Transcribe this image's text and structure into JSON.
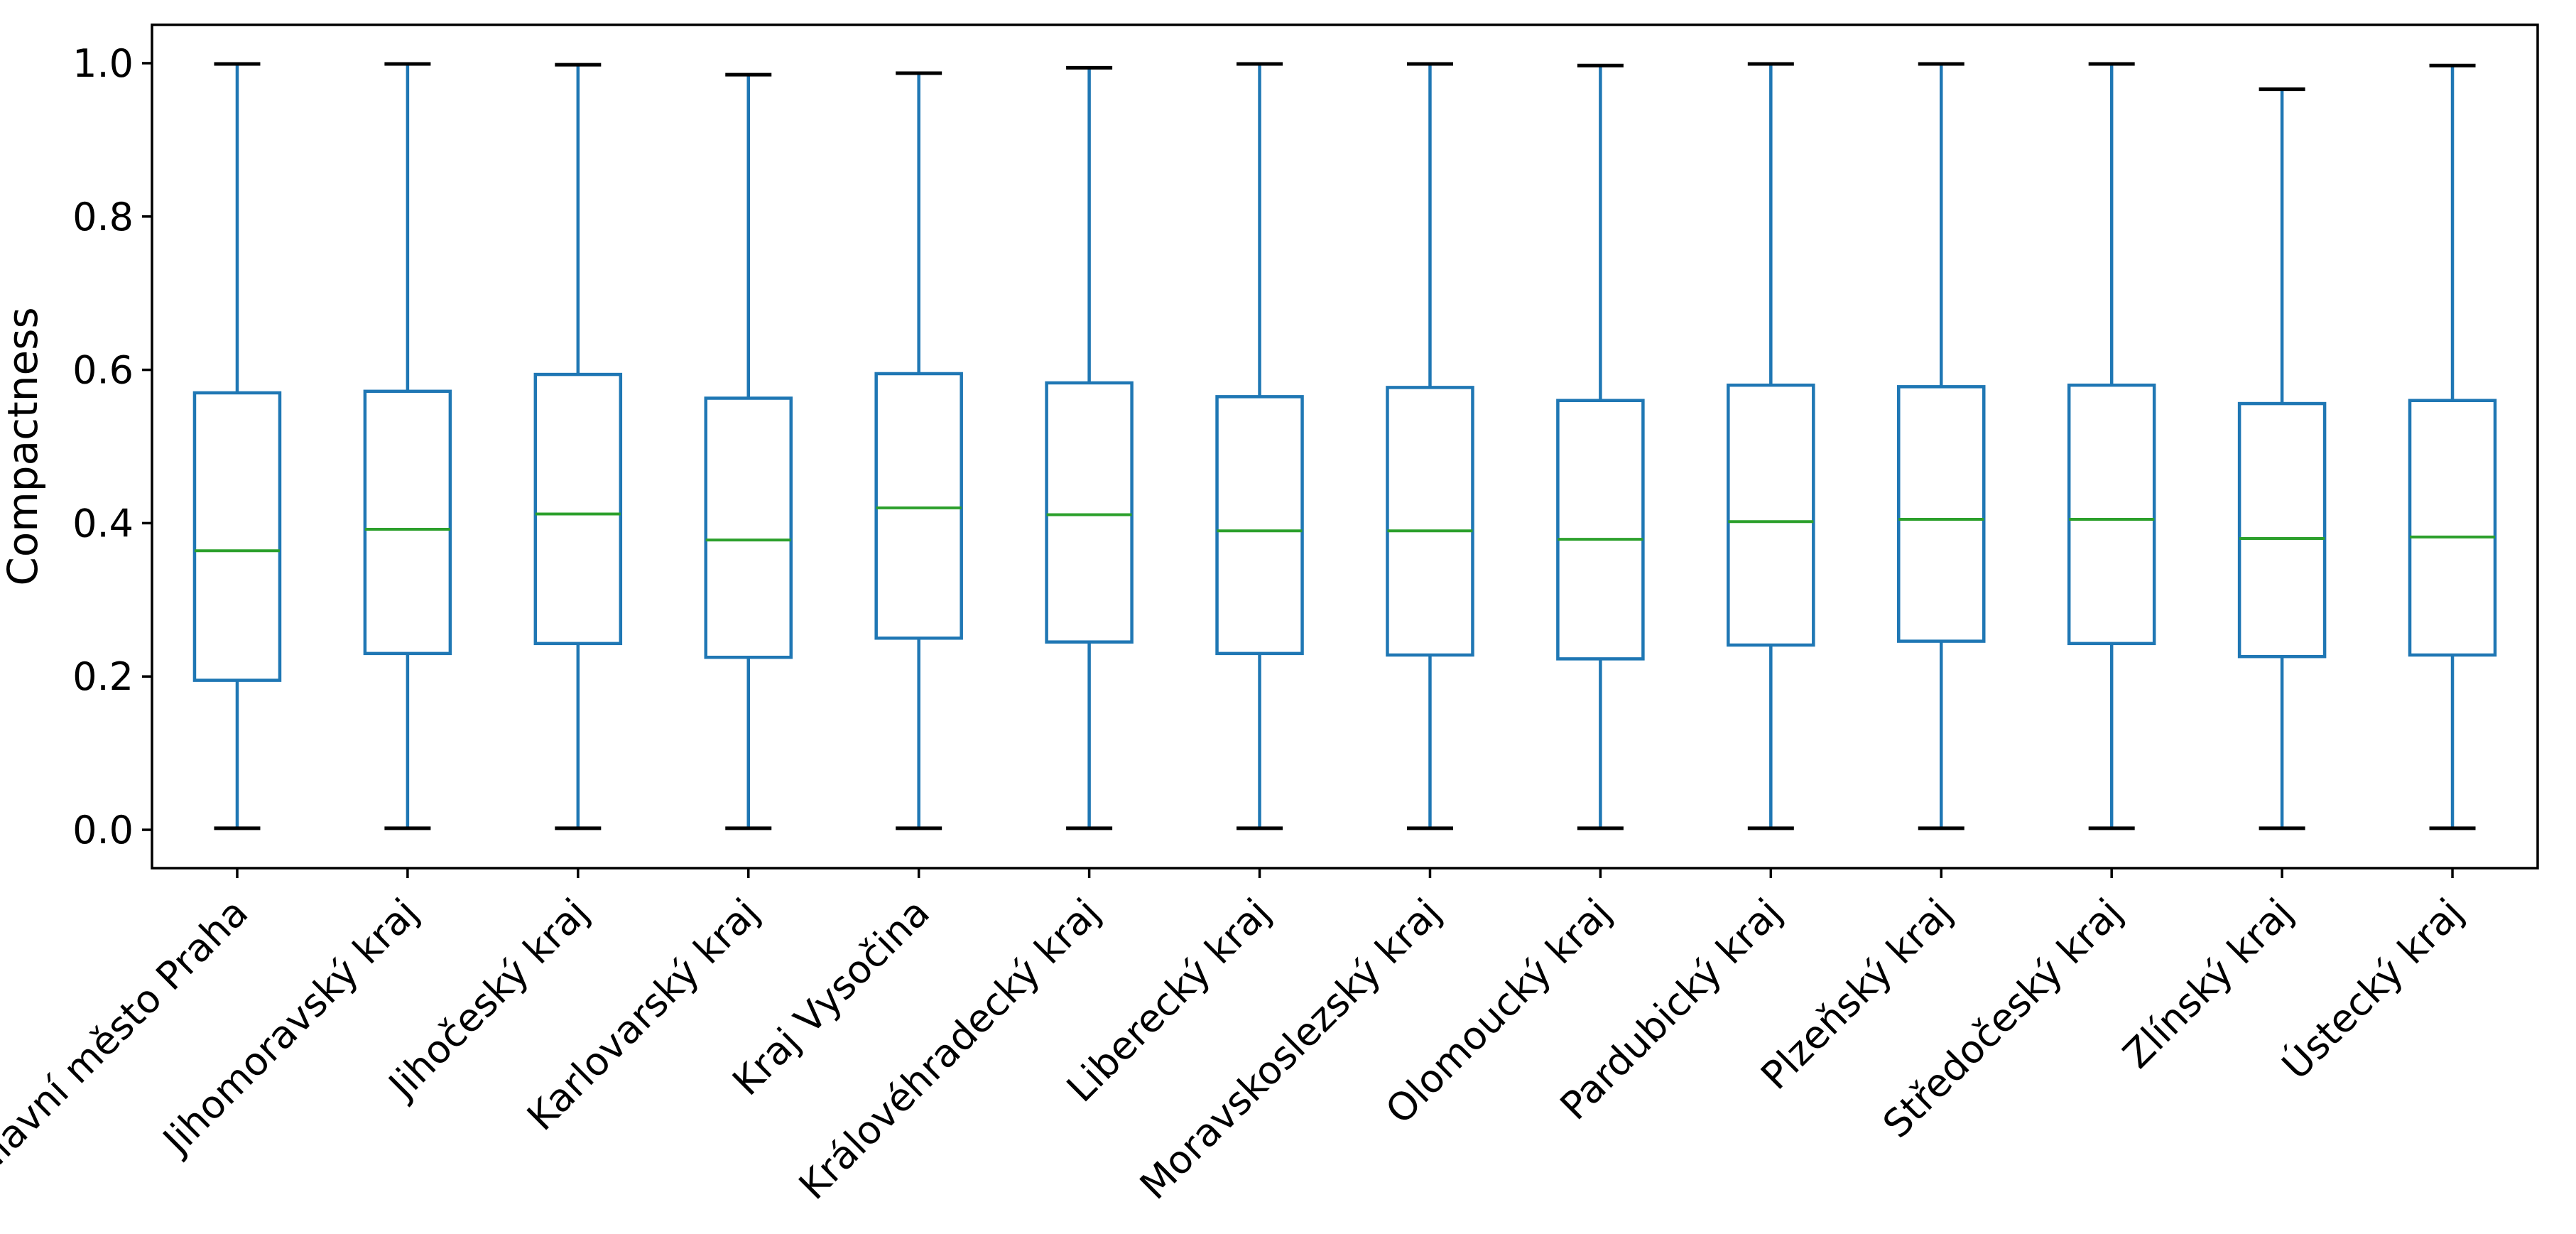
{
  "chart_data": {
    "type": "boxplot",
    "title": "",
    "xlabel": "",
    "ylabel": "Compactness",
    "grid": false,
    "legend": null,
    "ylim": [
      -0.05,
      1.05
    ],
    "x_tick_rotation": 45,
    "yticks": [
      {
        "value": 0.0,
        "label": "0.0"
      },
      {
        "value": 0.2,
        "label": "0.2"
      },
      {
        "value": 0.4,
        "label": "0.4"
      },
      {
        "value": 0.6,
        "label": "0.6"
      },
      {
        "value": 0.8,
        "label": "0.8"
      },
      {
        "value": 1.0,
        "label": "1.0"
      }
    ],
    "categories": [
      "Hlavní město Praha",
      "Jihomoravský kraj",
      "Jihočeský kraj",
      "Karlovarský kraj",
      "Kraj Vysočina",
      "Královéhradecký kraj",
      "Liberecký kraj",
      "Moravskoslezský kraj",
      "Olomoucký kraj",
      "Pardubický kraj",
      "Plzeňský kraj",
      "Středočeský kraj",
      "Zlínský kraj",
      "Ústecký kraj"
    ],
    "series": [
      {
        "name": "Hlavní město Praha",
        "whislo": 0.002,
        "q1": 0.195,
        "med": 0.364,
        "q3": 0.57,
        "whishi": 0.999
      },
      {
        "name": "Jihomoravský kraj",
        "whislo": 0.002,
        "q1": 0.23,
        "med": 0.392,
        "q3": 0.572,
        "whishi": 0.999
      },
      {
        "name": "Jihočeský kraj",
        "whislo": 0.002,
        "q1": 0.243,
        "med": 0.412,
        "q3": 0.594,
        "whishi": 0.998
      },
      {
        "name": "Karlovarský kraj",
        "whislo": 0.002,
        "q1": 0.225,
        "med": 0.378,
        "q3": 0.563,
        "whishi": 0.985
      },
      {
        "name": "Kraj Vysočina",
        "whislo": 0.002,
        "q1": 0.25,
        "med": 0.42,
        "q3": 0.595,
        "whishi": 0.987
      },
      {
        "name": "Královéhradecký kraj",
        "whislo": 0.002,
        "q1": 0.245,
        "med": 0.411,
        "q3": 0.583,
        "whishi": 0.994
      },
      {
        "name": "Liberecký kraj",
        "whislo": 0.002,
        "q1": 0.23,
        "med": 0.39,
        "q3": 0.565,
        "whishi": 0.999
      },
      {
        "name": "Moravskoslezský kraj",
        "whislo": 0.002,
        "q1": 0.228,
        "med": 0.39,
        "q3": 0.577,
        "whishi": 0.999
      },
      {
        "name": "Olomoucký kraj",
        "whislo": 0.002,
        "q1": 0.223,
        "med": 0.379,
        "q3": 0.56,
        "whishi": 0.997
      },
      {
        "name": "Pardubický kraj",
        "whislo": 0.002,
        "q1": 0.241,
        "med": 0.402,
        "q3": 0.58,
        "whishi": 0.999
      },
      {
        "name": "Plzeňský kraj",
        "whislo": 0.002,
        "q1": 0.246,
        "med": 0.405,
        "q3": 0.578,
        "whishi": 0.999
      },
      {
        "name": "Středočeský kraj",
        "whislo": 0.002,
        "q1": 0.243,
        "med": 0.405,
        "q3": 0.58,
        "whishi": 0.999
      },
      {
        "name": "Zlínský kraj",
        "whislo": 0.002,
        "q1": 0.226,
        "med": 0.38,
        "q3": 0.556,
        "whishi": 0.966
      },
      {
        "name": "Ústecký kraj",
        "whislo": 0.002,
        "q1": 0.228,
        "med": 0.382,
        "q3": 0.56,
        "whishi": 0.997
      }
    ],
    "colors": {
      "box": "#1f77b4",
      "whisker": "#1f77b4",
      "median": "#2ca02c",
      "caps": "#000000",
      "axes": "#000000",
      "background": "#ffffff"
    }
  }
}
